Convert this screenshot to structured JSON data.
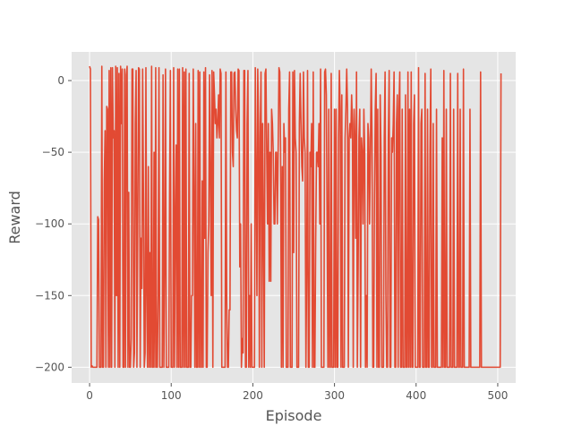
{
  "chart_data": {
    "type": "line",
    "title": "",
    "xlabel": "Episode",
    "ylabel": "Reward",
    "xlim": [
      -22,
      522
    ],
    "ylim": [
      -211,
      20
    ],
    "xticks": [
      0,
      100,
      200,
      300,
      400,
      500
    ],
    "yticks": [
      0,
      -50,
      -100,
      -150,
      -200
    ],
    "grid": true,
    "legend": "none",
    "colors": {
      "background": "#e5e5e5",
      "grid": "#ffffff",
      "line": "#e24a33",
      "tick_text": "#555555",
      "tick_mark": "#555555"
    },
    "series": [
      {
        "values": [
          10,
          8,
          -200,
          -199,
          -200,
          -200,
          -200,
          -200,
          -200,
          -200,
          -95,
          -97,
          -200,
          -200,
          -200,
          10,
          -200,
          -200,
          -70,
          -35,
          -200,
          -18,
          -20,
          -200,
          7,
          -200,
          9,
          -200,
          9,
          -40,
          -35,
          -200,
          10,
          -150,
          9,
          -200,
          5,
          -200,
          10,
          -30,
          8,
          -200,
          -200,
          8,
          -200,
          4,
          10,
          -200,
          -78,
          -200,
          -200,
          -180,
          8,
          8,
          -200,
          -190,
          -30,
          7,
          -200,
          -105,
          9,
          8,
          -200,
          -110,
          -145,
          8,
          -80,
          -200,
          -190,
          9,
          -150,
          -200,
          -60,
          -200,
          -120,
          -200,
          10,
          -200,
          -200,
          -50,
          -200,
          9,
          -200,
          -200,
          -150,
          9,
          -200,
          -200,
          -200,
          -200,
          4,
          -200,
          -130,
          8,
          -200,
          -200,
          -200,
          -200,
          -80,
          7,
          -200,
          -200,
          -200,
          9,
          -200,
          -100,
          -45,
          -200,
          8,
          -200,
          8,
          -200,
          -200,
          -200,
          9,
          -200,
          6,
          -200,
          8,
          -200,
          -200,
          -200,
          5,
          -200,
          -200,
          -150,
          -150,
          8,
          -80,
          -200,
          -30,
          -200,
          -200,
          7,
          -200,
          6,
          -200,
          -200,
          -70,
          -200,
          6,
          -110,
          9,
          -200,
          -200,
          -120,
          -100,
          4,
          -70,
          -150,
          7,
          -200,
          6,
          -10,
          -30,
          -20,
          -40,
          -30,
          -10,
          -40,
          8,
          5,
          -200,
          -200,
          -200,
          -200,
          -200,
          6,
          -155,
          -200,
          -200,
          -160,
          -160,
          6,
          6,
          -50,
          -60,
          5,
          6,
          -20,
          -35,
          -40,
          8,
          7,
          -130,
          -100,
          -200,
          -180,
          -190,
          7,
          7,
          -200,
          -200,
          -30,
          7,
          -200,
          -150,
          -200,
          -100,
          -200,
          -200,
          -200,
          -200,
          9,
          -70,
          -150,
          8,
          -30,
          -200,
          -40,
          6,
          -200,
          -30,
          -100,
          -200,
          5,
          8,
          -50,
          -100,
          -30,
          -140,
          -50,
          -140,
          -20,
          -30,
          -50,
          -100,
          -100,
          -50,
          -50,
          -100,
          -50,
          9,
          6,
          -50,
          -200,
          -60,
          -200,
          -30,
          -50,
          -40,
          -200,
          -200,
          -200,
          -20,
          6,
          -200,
          -200,
          -200,
          6,
          -120,
          7,
          -40,
          -50,
          -200,
          -200,
          -200,
          -30,
          5,
          -30,
          -60,
          -70,
          6,
          -40,
          -50,
          -200,
          -130,
          7,
          -200,
          -200,
          -50,
          -60,
          -30,
          -200,
          6,
          -200,
          -200,
          -110,
          -50,
          -50,
          -60,
          -30,
          -100,
          8,
          -200,
          -200,
          -200,
          -200,
          6,
          8,
          -10,
          -100,
          -200,
          -20,
          -200,
          -200,
          5,
          -200,
          -200,
          -200,
          -20,
          -200,
          -20,
          -200,
          -200,
          -40,
          7,
          -20,
          -200,
          -10,
          -200,
          -200,
          -200,
          -40,
          -20,
          8,
          -20,
          -200,
          -40,
          -30,
          -40,
          -10,
          -30,
          -200,
          -20,
          -40,
          -110,
          6,
          -200,
          -130,
          -40,
          -20,
          -200,
          -40,
          -50,
          -100,
          -20,
          -50,
          -200,
          -150,
          -200,
          -30,
          -40,
          -100,
          -50,
          8,
          -40,
          -200,
          -200,
          -80,
          -20,
          5,
          -200,
          -20,
          -200,
          -200,
          -10,
          -50,
          -200,
          -200,
          -200,
          -40,
          6,
          -150,
          -200,
          -200,
          -40,
          7,
          -200,
          -200,
          -40,
          -50,
          -30,
          6,
          -200,
          -200,
          -30,
          -10,
          -200,
          -20,
          6,
          -200,
          -200,
          -20,
          -200,
          -200,
          -200,
          -10,
          -200,
          -200,
          6,
          -200,
          -20,
          -200,
          6,
          -200,
          -200,
          -30,
          -10,
          -200,
          -200,
          -200,
          -200,
          9,
          -200,
          -200,
          -30,
          -20,
          -200,
          -200,
          -200,
          5,
          -200,
          -200,
          -20,
          -200,
          -200,
          -50,
          8,
          -200,
          -200,
          -30,
          -200,
          -200,
          -200,
          -20,
          -200,
          -200,
          -200,
          -200,
          -200,
          -200,
          -40,
          -200,
          7,
          -200,
          -200,
          -20,
          -200,
          -200,
          -200,
          -200,
          5,
          -200,
          -200,
          -200,
          -20,
          -200,
          -200,
          -200,
          -200,
          5,
          -200,
          -200,
          -20,
          -200,
          -200,
          -200,
          8,
          -200,
          -200,
          -200,
          -200,
          -200,
          -200,
          -200,
          -20,
          -200,
          -200,
          -200,
          -200,
          -200,
          -200,
          -200,
          -200,
          -200,
          -200,
          -200,
          -200,
          6,
          -200,
          -200,
          -200,
          -200,
          -200,
          -200,
          -200,
          -200,
          -200,
          -200,
          -200,
          -200,
          -200,
          -200,
          -200,
          -200,
          -200,
          -200,
          -200,
          -200,
          -200,
          -200,
          -200,
          -200,
          5
        ]
      }
    ]
  }
}
